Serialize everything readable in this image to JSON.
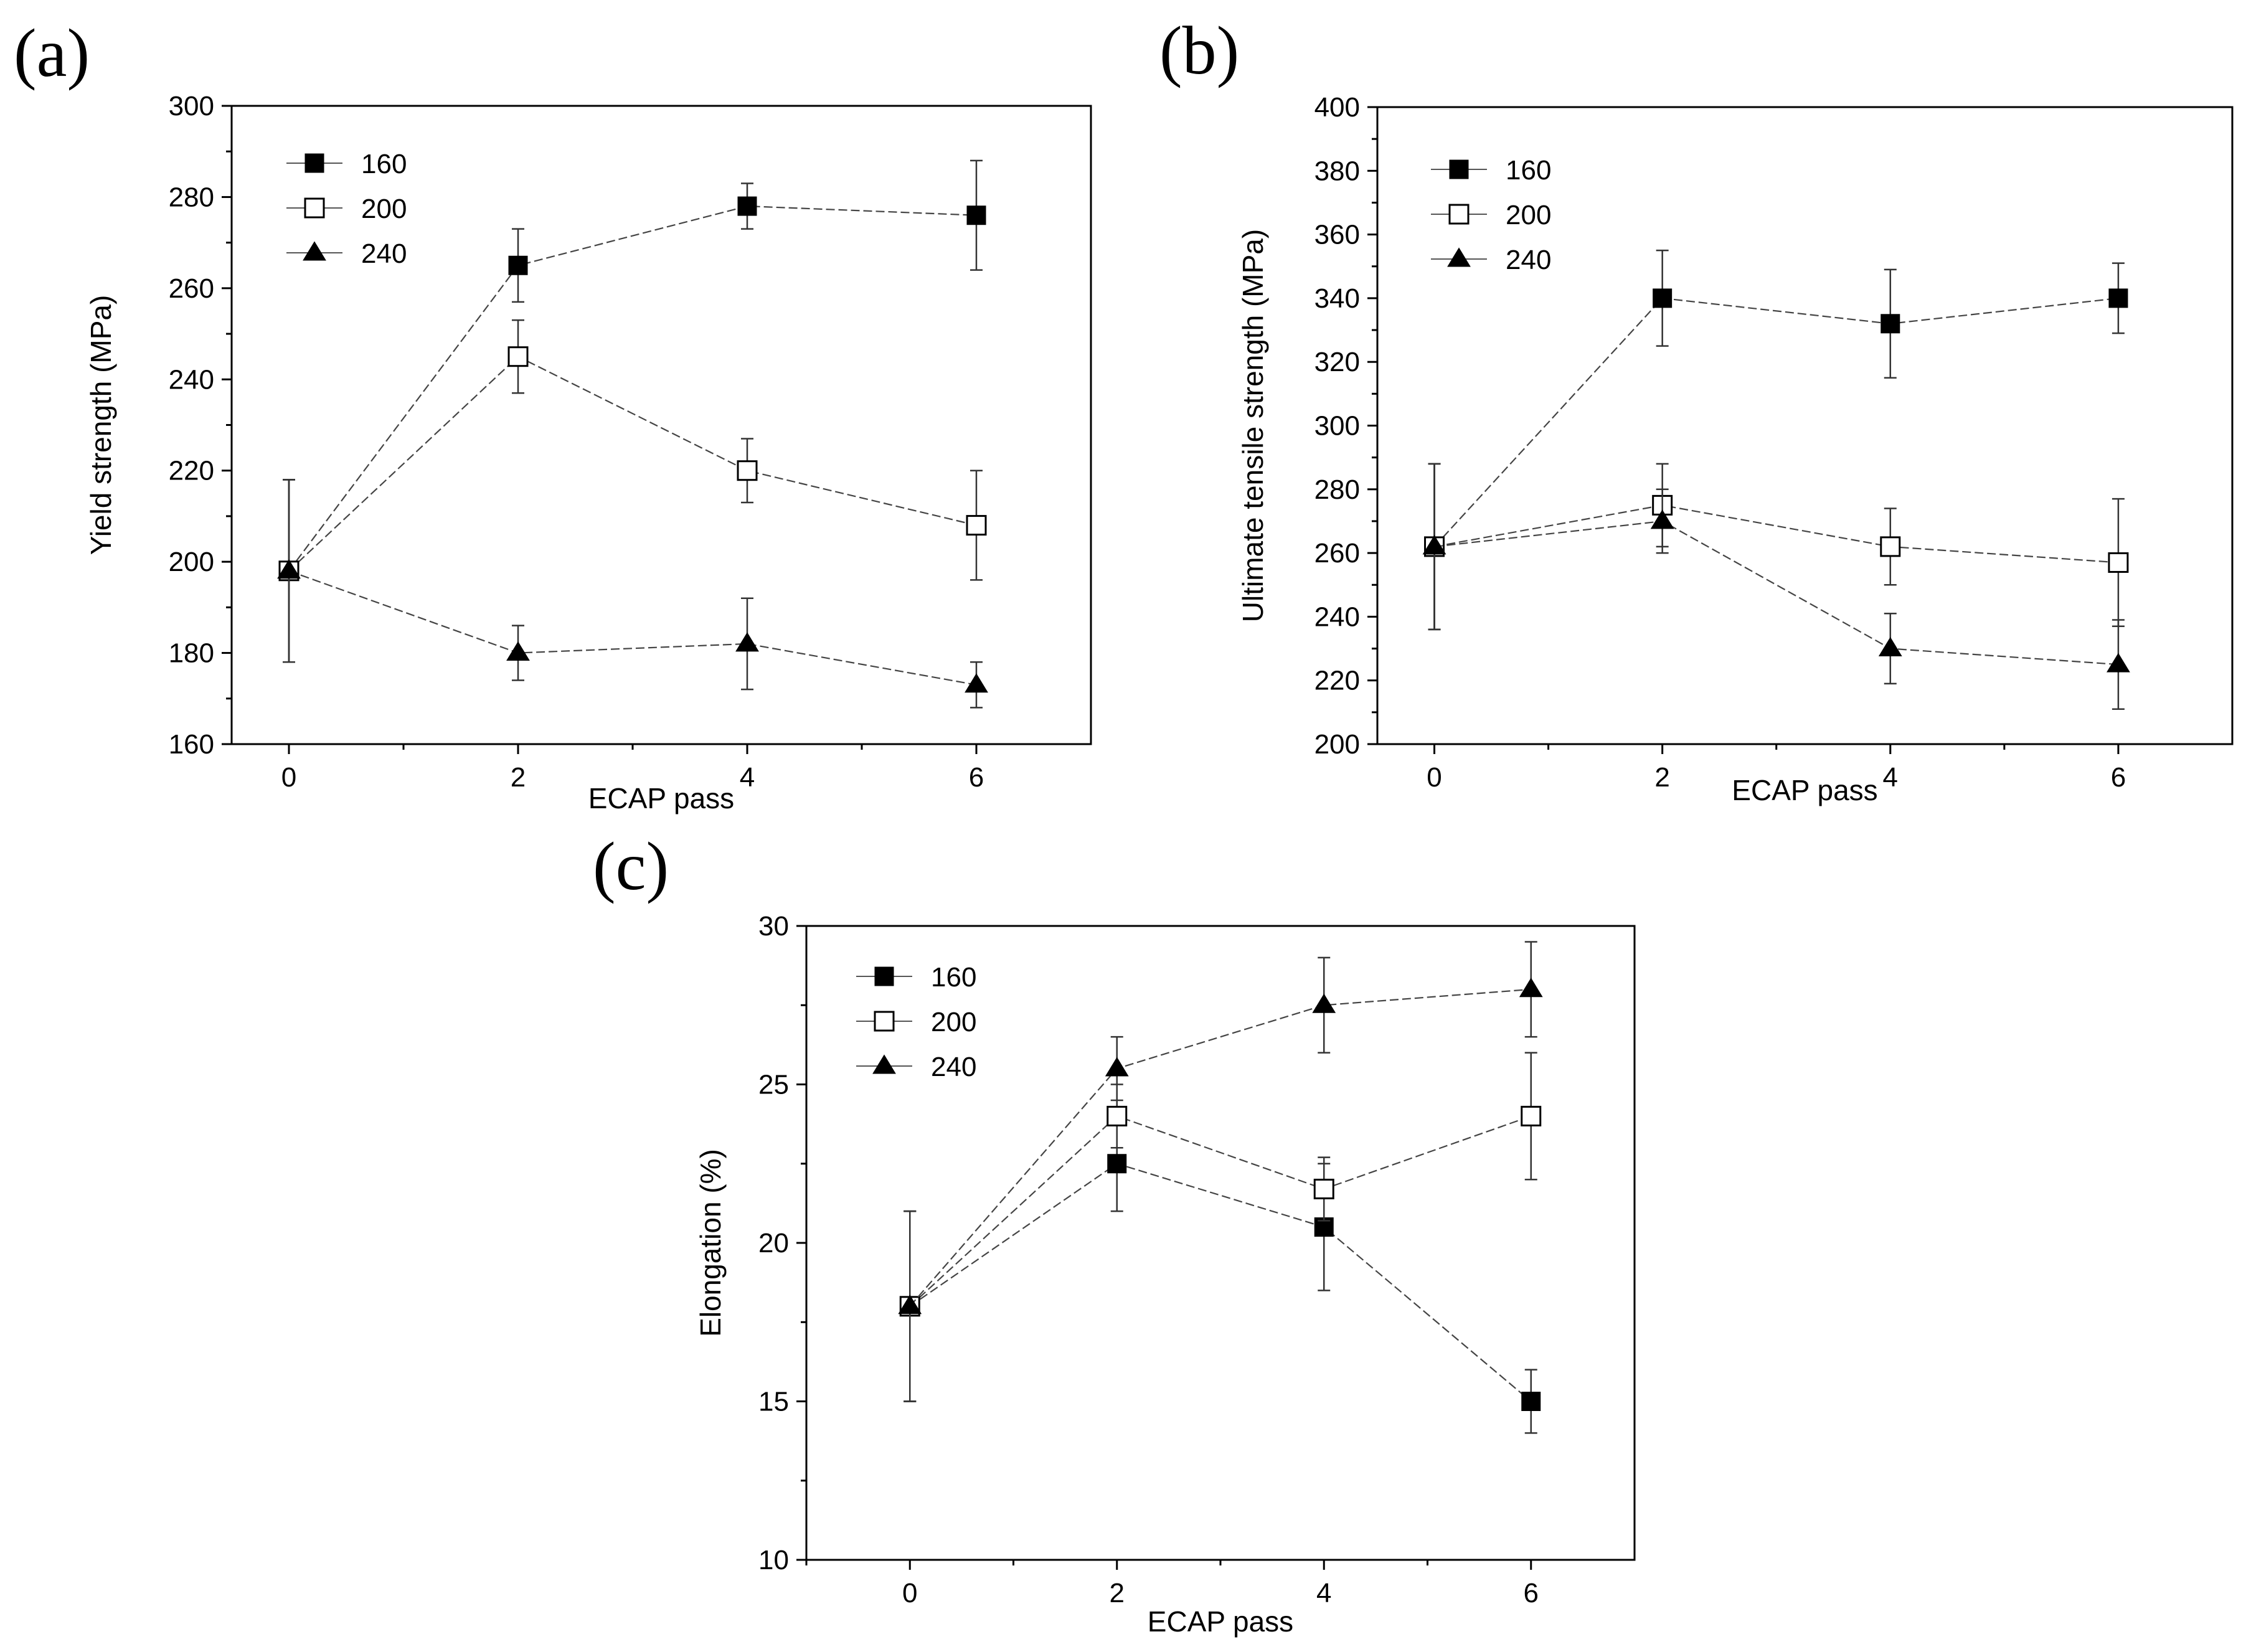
{
  "chart_data": [
    {
      "type": "line",
      "panel_label": "(a)",
      "xlabel": "ECAP pass",
      "ylabel": "Yield strength (MPa)",
      "xlim": [
        -0.5,
        7.0
      ],
      "ylim": [
        160,
        300
      ],
      "x_ticks": [
        0,
        2,
        4,
        6
      ],
      "y_ticks": [
        160,
        180,
        200,
        220,
        240,
        260,
        280,
        300
      ],
      "x": [
        0,
        2,
        4,
        6
      ],
      "legend_position": "top-left",
      "series": [
        {
          "name": "160",
          "marker": "filled-square",
          "values": [
            198,
            265,
            278,
            276
          ],
          "errors": [
            20,
            8,
            5,
            12
          ]
        },
        {
          "name": "200",
          "marker": "open-square",
          "values": [
            198,
            245,
            220,
            208
          ],
          "errors": [
            20,
            8,
            7,
            12
          ]
        },
        {
          "name": "240",
          "marker": "filled-triangle",
          "values": [
            198,
            180,
            182,
            173
          ],
          "errors": [
            20,
            6,
            10,
            5
          ]
        }
      ]
    },
    {
      "type": "line",
      "panel_label": "(b)",
      "xlabel": "ECAP pass",
      "ylabel": "Ultimate tensile strength (MPa)",
      "xlim": [
        -0.5,
        7.0
      ],
      "ylim": [
        200,
        400
      ],
      "x_ticks": [
        0,
        2,
        4,
        6
      ],
      "y_ticks": [
        200,
        220,
        240,
        260,
        280,
        300,
        320,
        340,
        360,
        380,
        400
      ],
      "x": [
        0,
        2,
        4,
        6
      ],
      "legend_position": "top-left",
      "series": [
        {
          "name": "160",
          "marker": "filled-square",
          "values": [
            262,
            340,
            332,
            340
          ],
          "errors": [
            26,
            15,
            17,
            11
          ]
        },
        {
          "name": "200",
          "marker": "open-square",
          "values": [
            262,
            275,
            262,
            257
          ],
          "errors": [
            26,
            13,
            12,
            20
          ]
        },
        {
          "name": "240",
          "marker": "filled-triangle",
          "values": [
            262,
            270,
            230,
            225
          ],
          "errors": [
            26,
            10,
            11,
            14
          ]
        }
      ]
    },
    {
      "type": "line",
      "panel_label": "(c)",
      "xlabel": "ECAP pass",
      "ylabel": "Elongation (%)",
      "xlim": [
        -1.0,
        7.0
      ],
      "ylim": [
        10,
        30
      ],
      "x_ticks": [
        0,
        2,
        4,
        6
      ],
      "y_ticks": [
        10,
        15,
        20,
        25,
        30
      ],
      "x": [
        0,
        2,
        4,
        6
      ],
      "legend_position": "top-left",
      "series": [
        {
          "name": "160",
          "marker": "filled-square",
          "values": [
            18,
            22.5,
            20.5,
            15
          ],
          "errors": [
            3,
            1.5,
            2,
            1
          ]
        },
        {
          "name": "200",
          "marker": "open-square",
          "values": [
            18,
            24,
            21.7,
            24
          ],
          "errors": [
            3,
            1,
            1,
            2
          ]
        },
        {
          "name": "240",
          "marker": "filled-triangle",
          "values": [
            18,
            25.5,
            27.5,
            28
          ],
          "errors": [
            3,
            1,
            1.5,
            1.5
          ]
        }
      ]
    }
  ]
}
